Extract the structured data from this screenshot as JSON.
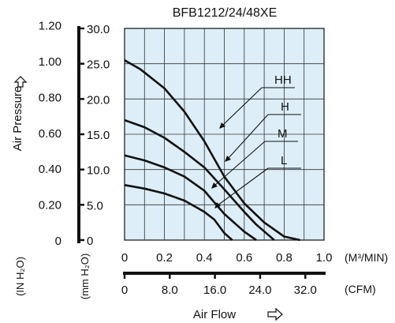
{
  "chart_data": {
    "type": "line",
    "title": "BFB1212/24/48XE",
    "plot_bg": "#ddeef8",
    "line_color": "#111111",
    "grid": true,
    "xlabel": "Air Flow",
    "ylabel": "Air Pressure",
    "x_axis_m3": {
      "min": 0,
      "max": 1.0,
      "ticks": [
        "0",
        "0.2",
        "0.4",
        "0.6",
        "0.8",
        "1.0"
      ],
      "unit": "(M³/MIN)"
    },
    "x_axis_cfm": {
      "ticks": [
        "0",
        "8.0",
        "16.0",
        "24.0",
        "32.0"
      ],
      "values": [
        0,
        8,
        16,
        24,
        32
      ],
      "unit": "(CFM)"
    },
    "y_axis_mm": {
      "min": 0,
      "max": 30,
      "ticks": [
        "0",
        "5.0",
        "10.0",
        "15.0",
        "20.0",
        "25.0",
        "30.0"
      ],
      "unit": "(mm H₂O)"
    },
    "y_axis_in": {
      "ticks": [
        "0",
        "0.20",
        "0.40",
        "0.60",
        "0.80",
        "1.00",
        "1.20"
      ],
      "values": [
        0,
        0.2,
        0.4,
        0.6,
        0.8,
        1.0,
        1.2
      ],
      "unit": "(IN H₂O)"
    },
    "series": [
      {
        "name": "HH",
        "points": [
          [
            0,
            25.5
          ],
          [
            0.08,
            24.2
          ],
          [
            0.2,
            21.5
          ],
          [
            0.3,
            18.2
          ],
          [
            0.4,
            14.0
          ],
          [
            0.5,
            9.0
          ],
          [
            0.6,
            5.2
          ],
          [
            0.7,
            2.5
          ],
          [
            0.8,
            0.5
          ],
          [
            0.88,
            0
          ]
        ]
      },
      {
        "name": "H",
        "points": [
          [
            0,
            17.0
          ],
          [
            0.1,
            16.0
          ],
          [
            0.2,
            14.5
          ],
          [
            0.3,
            12.5
          ],
          [
            0.4,
            10.3
          ],
          [
            0.5,
            7.2
          ],
          [
            0.6,
            4.0
          ],
          [
            0.66,
            2.2
          ],
          [
            0.75,
            0
          ]
        ]
      },
      {
        "name": "M",
        "points": [
          [
            0,
            12.0
          ],
          [
            0.1,
            11.3
          ],
          [
            0.2,
            10.3
          ],
          [
            0.3,
            9.0
          ],
          [
            0.4,
            7.0
          ],
          [
            0.46,
            5.0
          ],
          [
            0.5,
            3.7
          ],
          [
            0.6,
            1.2
          ],
          [
            0.66,
            0
          ]
        ]
      },
      {
        "name": "L",
        "points": [
          [
            0,
            7.8
          ],
          [
            0.1,
            7.3
          ],
          [
            0.2,
            6.6
          ],
          [
            0.3,
            5.6
          ],
          [
            0.4,
            4.0
          ],
          [
            0.45,
            2.9
          ],
          [
            0.5,
            1.0
          ],
          [
            0.54,
            0
          ]
        ]
      }
    ]
  }
}
